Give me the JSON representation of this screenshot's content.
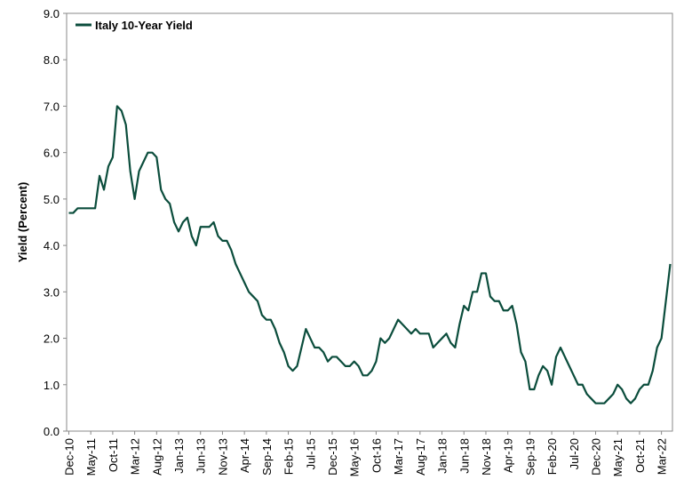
{
  "chart_data": {
    "type": "line",
    "ylabel": "Yield (Percent)",
    "categories": [
      "Dec-10",
      null,
      null,
      null,
      null,
      "May-11",
      null,
      null,
      null,
      null,
      "Oct-11",
      null,
      null,
      null,
      null,
      "Mar-12",
      null,
      null,
      null,
      null,
      "Aug-12",
      null,
      null,
      null,
      null,
      "Jan-13",
      null,
      null,
      null,
      null,
      "Jun-13",
      null,
      null,
      null,
      null,
      "Nov-13",
      null,
      null,
      null,
      null,
      "Apr-14",
      null,
      null,
      null,
      null,
      "Sep-14",
      null,
      null,
      null,
      null,
      "Feb-15",
      null,
      null,
      null,
      null,
      "Jul-15",
      null,
      null,
      null,
      null,
      "Dec-15",
      null,
      null,
      null,
      null,
      "May-16",
      null,
      null,
      null,
      null,
      "Oct-16",
      null,
      null,
      null,
      null,
      "Mar-17",
      null,
      null,
      null,
      null,
      "Aug-17",
      null,
      null,
      null,
      null,
      "Jan-18",
      null,
      null,
      null,
      null,
      "Jun-18",
      null,
      null,
      null,
      null,
      "Nov-18",
      null,
      null,
      null,
      null,
      "Apr-19",
      null,
      null,
      null,
      null,
      "Sep-19",
      null,
      null,
      null,
      null,
      "Feb-20",
      null,
      null,
      null,
      null,
      "Jul-20",
      null,
      null,
      null,
      null,
      "Dec-20",
      null,
      null,
      null,
      null,
      "May-21",
      null,
      null,
      null,
      null,
      "Oct-21",
      null,
      null,
      null,
      null,
      "Mar-22",
      null,
      null
    ],
    "series": [
      {
        "name": "Italy 10-Year Yield",
        "color": "#0b4d3c",
        "values": [
          4.7,
          4.7,
          4.8,
          4.8,
          4.8,
          4.8,
          4.8,
          5.5,
          5.2,
          5.7,
          5.9,
          7.0,
          6.9,
          6.6,
          5.6,
          5.0,
          5.6,
          5.8,
          6.0,
          6.0,
          5.9,
          5.2,
          5.0,
          4.9,
          4.5,
          4.3,
          4.5,
          4.6,
          4.2,
          4.0,
          4.4,
          4.4,
          4.4,
          4.5,
          4.2,
          4.1,
          4.1,
          3.9,
          3.6,
          3.4,
          3.2,
          3.0,
          2.9,
          2.8,
          2.5,
          2.4,
          2.4,
          2.2,
          1.9,
          1.7,
          1.4,
          1.3,
          1.4,
          1.8,
          2.2,
          2.0,
          1.8,
          1.8,
          1.7,
          1.5,
          1.6,
          1.6,
          1.5,
          1.4,
          1.4,
          1.5,
          1.4,
          1.2,
          1.2,
          1.3,
          1.5,
          2.0,
          1.9,
          2.0,
          2.2,
          2.4,
          2.3,
          2.2,
          2.1,
          2.2,
          2.1,
          2.1,
          2.1,
          1.8,
          1.9,
          2.0,
          2.1,
          1.9,
          1.8,
          2.3,
          2.7,
          2.6,
          3.0,
          3.0,
          3.4,
          3.4,
          2.9,
          2.8,
          2.8,
          2.6,
          2.6,
          2.7,
          2.3,
          1.7,
          1.5,
          0.9,
          0.9,
          1.2,
          1.4,
          1.3,
          1.0,
          1.6,
          1.8,
          1.6,
          1.4,
          1.2,
          1.0,
          1.0,
          0.8,
          0.7,
          0.6,
          0.6,
          0.6,
          0.7,
          0.8,
          1.0,
          0.9,
          0.7,
          0.6,
          0.7,
          0.9,
          1.0,
          1.0,
          1.3,
          1.8,
          2.0,
          2.8,
          3.6
        ]
      }
    ],
    "ylim": [
      0,
      9
    ],
    "yticks": [
      {
        "value": 0,
        "label": "0.0"
      },
      {
        "value": 1,
        "label": "1.0"
      },
      {
        "value": 2,
        "label": "2.0"
      },
      {
        "value": 3,
        "label": "3.0"
      },
      {
        "value": 4,
        "label": "4.0"
      },
      {
        "value": 5,
        "label": "5.0"
      },
      {
        "value": 6,
        "label": "6.0"
      },
      {
        "value": 7,
        "label": "7.0"
      },
      {
        "value": 8,
        "label": "8.0"
      },
      {
        "value": 9,
        "label": "9.0"
      }
    ],
    "legend": "upper left"
  }
}
